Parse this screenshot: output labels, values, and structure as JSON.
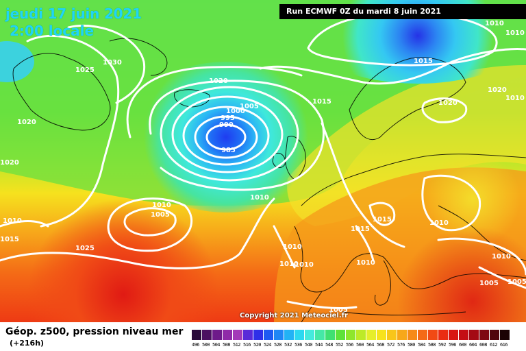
{
  "header": {
    "date_label": "jeudi 17 juin 2021",
    "time_label": "2:00 locale",
    "run_label": "Run ECMWF 0Z du mardi 8 juin 2021"
  },
  "footer": {
    "copyright": "Copyright 2021 Meteociel.fr",
    "legend_title": "Géop. z500, pression niveau mer",
    "legend_subtitle": "(+216h)"
  },
  "legend_scale": {
    "values": [
      "496",
      "500",
      "504",
      "508",
      "512",
      "516",
      "520",
      "524",
      "528",
      "532",
      "536",
      "540",
      "544",
      "548",
      "552",
      "556",
      "560",
      "564",
      "568",
      "572",
      "576",
      "580",
      "584",
      "588",
      "592",
      "596",
      "600",
      "604",
      "608",
      "612",
      "616"
    ],
    "colors": [
      "#2a0a3a",
      "#4b1060",
      "#6e1a8a",
      "#8f2aa8",
      "#a33ab8",
      "#5a2ad8",
      "#2f2fe8",
      "#1e5af2",
      "#1f86f5",
      "#22b2f5",
      "#2cd8f0",
      "#45eadc",
      "#45e8a6",
      "#3fe072",
      "#5ee23a",
      "#8ee62c",
      "#bdea27",
      "#e6ee2a",
      "#f7e21d",
      "#f8c61a",
      "#f7a81a",
      "#f68a18",
      "#f46a16",
      "#f14a14",
      "#ea2c12",
      "#d81612",
      "#c40e14",
      "#a40a14",
      "#7e0812",
      "#50060c",
      "#1a0204"
    ]
  },
  "isobar_labels": [
    "1030",
    "1025",
    "1020",
    "1020",
    "1015",
    "1010",
    "1010",
    "1005",
    "1000",
    "995",
    "990",
    "985",
    "1005",
    "1010",
    "1010",
    "1015",
    "1015",
    "1020",
    "1020",
    "1010",
    "1015",
    "1010",
    "1010",
    "1010",
    "1010",
    "1010",
    "1010",
    "1005",
    "1005",
    "1005",
    "1025",
    "1010",
    "1015",
    "1020"
  ]
}
